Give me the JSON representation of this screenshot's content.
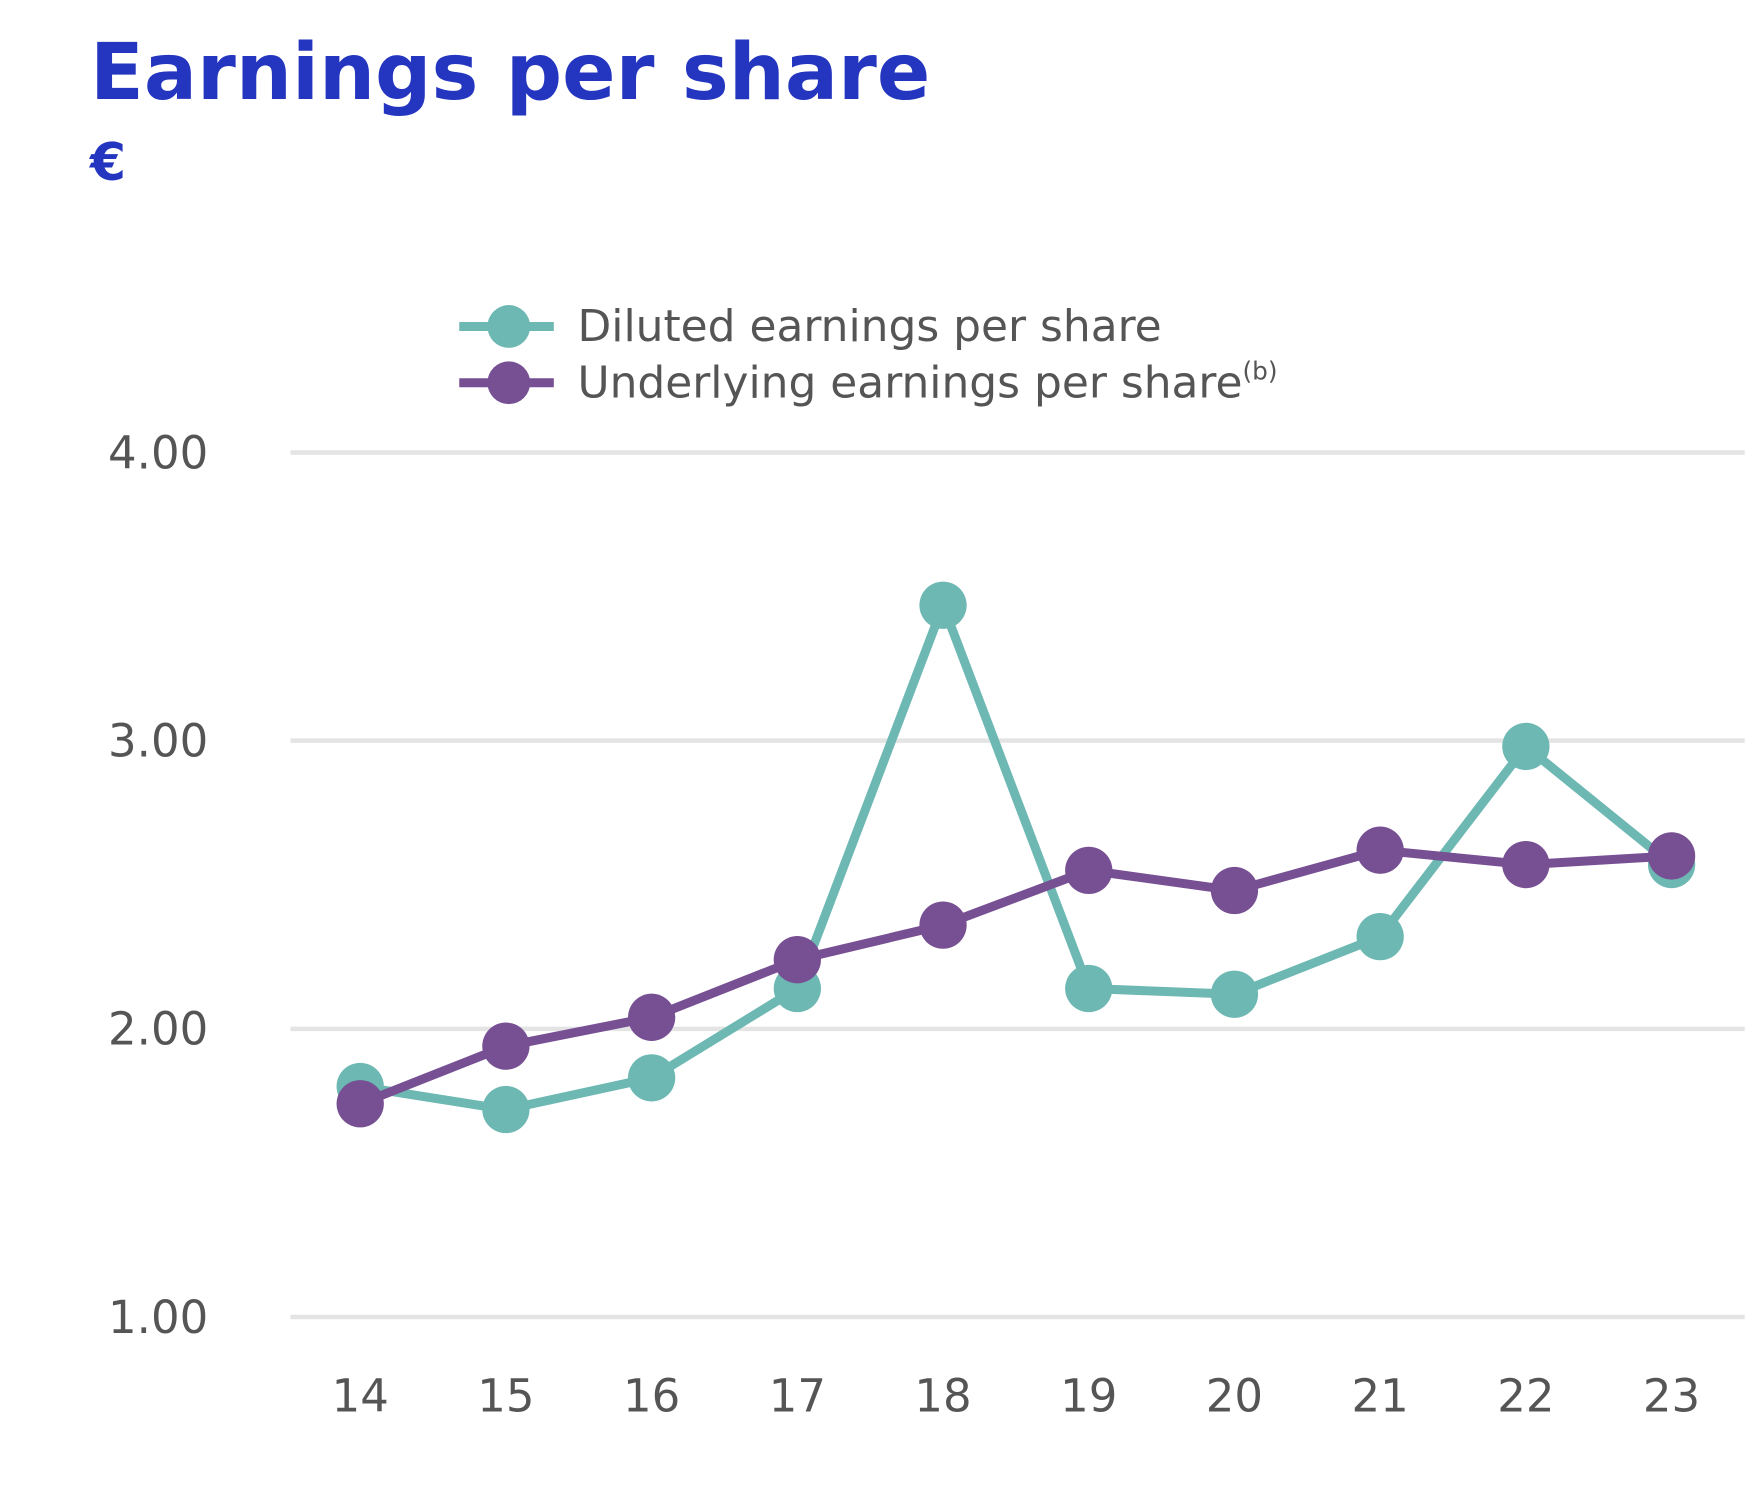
{
  "chart_data": {
    "type": "line",
    "title": "Earnings per share",
    "subtitle": "€",
    "xlabel": "",
    "ylabel": "",
    "categories": [
      "14",
      "15",
      "16",
      "17",
      "18",
      "19",
      "20",
      "21",
      "22",
      "23"
    ],
    "yticks": [
      "1.00",
      "2.00",
      "3.00",
      "4.00"
    ],
    "ylim": [
      1,
      4
    ],
    "grid": true,
    "legend_position": "top",
    "series": [
      {
        "name": "Diluted earnings per share",
        "color": "#6db8b3",
        "values": [
          1.8,
          1.72,
          1.83,
          2.14,
          3.47,
          2.14,
          2.12,
          2.32,
          2.98,
          2.57
        ]
      },
      {
        "name": "Underlying earnings per share",
        "superscript": "(b)",
        "color": "#774f93",
        "values": [
          1.74,
          1.94,
          2.04,
          2.24,
          2.36,
          2.55,
          2.48,
          2.62,
          2.57,
          2.6
        ]
      }
    ]
  }
}
